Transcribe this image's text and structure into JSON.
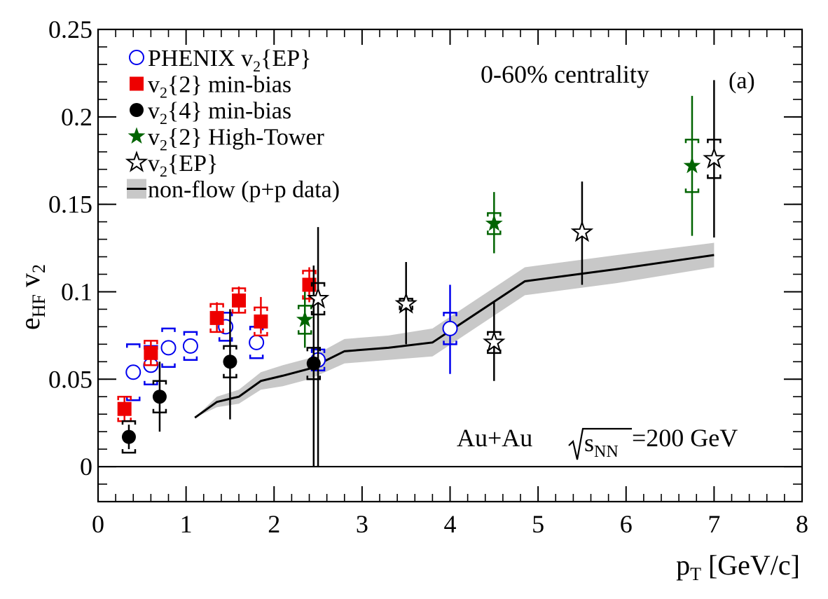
{
  "chart_data": {
    "type": "scatter",
    "xlabel": "p",
    "xlabel_sub": "T",
    "xlabel_unit": "[GeV/c]",
    "ylabel": "e",
    "ylabel_sub": "HF",
    "ylabel_tail": "v",
    "ylabel_tail_sub": "2",
    "xlim": [
      0,
      8
    ],
    "ylim": [
      -0.02,
      0.25
    ],
    "x_ticks": [
      0,
      1,
      2,
      3,
      4,
      5,
      6,
      7,
      8
    ],
    "x_tick_labels": [
      "0",
      "1",
      "2",
      "3",
      "4",
      "5",
      "6",
      "7",
      "8"
    ],
    "y_ticks": [
      0,
      0.05,
      0.1,
      0.15,
      0.2,
      0.25
    ],
    "y_tick_labels": [
      "0",
      "0.05",
      "0.1",
      "0.15",
      "0.2",
      "0.25"
    ],
    "annotations": {
      "centrality": "0-60% centrality",
      "panel": "(a)",
      "system": "Au+Au",
      "sqrt_label": "s",
      "sqrt_sub": "NN",
      "energy": "=200 GeV"
    },
    "legend": {
      "placement": "top-left",
      "entries": [
        {
          "key": "phenix",
          "symbol": "open-circle",
          "color": "#0000ee",
          "parts": [
            "PHENIX v",
            "2",
            "{EP}"
          ]
        },
        {
          "key": "v2_2_mb",
          "symbol": "filled-square",
          "color": "#ee0000",
          "parts": [
            "v",
            "2",
            "{2} min-bias"
          ]
        },
        {
          "key": "v2_4_mb",
          "symbol": "filled-circle",
          "color": "#000000",
          "parts": [
            "v",
            "2",
            "{4} min-bias"
          ]
        },
        {
          "key": "v2_2_ht",
          "symbol": "filled-star",
          "color": "#006400",
          "parts": [
            "v",
            "2",
            "{2} High-Tower"
          ]
        },
        {
          "key": "v2_ep",
          "symbol": "open-star",
          "color": "#000000",
          "parts": [
            "v",
            "2",
            "{EP}"
          ]
        },
        {
          "key": "nonflow",
          "symbol": "line-band",
          "color": "#000000",
          "band_color": "#c8c8c8",
          "parts": [
            "non-flow (p+p data)",
            "",
            ""
          ]
        }
      ]
    },
    "series": [
      {
        "key": "phenix",
        "symbol": "open-circle",
        "color": "#0000ee",
        "points": [
          {
            "x": 0.4,
            "y": 0.054,
            "sys": 0.016
          },
          {
            "x": 0.6,
            "y": 0.058,
            "sys": 0.011
          },
          {
            "x": 0.8,
            "y": 0.068,
            "sys": 0.011
          },
          {
            "x": 1.05,
            "y": 0.069,
            "sys": 0.008
          },
          {
            "x": 1.45,
            "y": 0.08,
            "sys": 0.008
          },
          {
            "x": 1.8,
            "y": 0.071,
            "sys": 0.009
          },
          {
            "x": 2.5,
            "y": 0.061,
            "sys": 0.006
          },
          {
            "x": 4.0,
            "y": 0.079,
            "stat": [
              0.053,
              0.104
            ],
            "sys": 0.009
          }
        ]
      },
      {
        "key": "v2_2_mb",
        "symbol": "filled-square",
        "color": "#ee0000",
        "points": [
          {
            "x": 0.3,
            "y": 0.033,
            "stat": [
              0.026,
              0.04
            ],
            "sys": 0.007
          },
          {
            "x": 0.6,
            "y": 0.065,
            "stat": [
              0.058,
              0.072
            ],
            "sys": 0.007
          },
          {
            "x": 1.35,
            "y": 0.085,
            "stat": [
              0.077,
              0.094
            ],
            "sys": 0.008
          },
          {
            "x": 1.6,
            "y": 0.095,
            "stat": [
              0.088,
              0.103
            ],
            "sys": 0.007
          },
          {
            "x": 1.85,
            "y": 0.083,
            "stat": [
              0.076,
              0.097
            ],
            "sys": 0.008
          },
          {
            "x": 2.4,
            "y": 0.104,
            "stat": [
              0.094,
              0.114
            ],
            "sys": 0.008
          }
        ]
      },
      {
        "key": "v2_4_mb",
        "symbol": "filled-circle",
        "color": "#000000",
        "points": [
          {
            "x": 0.35,
            "y": 0.017,
            "stat": [
              0.01,
              0.024
            ],
            "sys": 0.009
          },
          {
            "x": 0.7,
            "y": 0.04,
            "stat": [
              0.02,
              0.06
            ],
            "sys": 0.009
          },
          {
            "x": 1.5,
            "y": 0.06,
            "stat": [
              0.027,
              0.09
            ],
            "sys": 0.009
          },
          {
            "x": 2.45,
            "y": 0.059,
            "stat": [
              0.0,
              0.115
            ],
            "sys": 0.009
          }
        ]
      },
      {
        "key": "v2_2_ht",
        "symbol": "filled-star",
        "color": "#006400",
        "points": [
          {
            "x": 2.35,
            "y": 0.084,
            "stat": [
              0.068,
              0.1
            ],
            "sys": 0.008
          },
          {
            "x": 4.5,
            "y": 0.139,
            "stat": [
              0.122,
              0.157
            ],
            "sys": 0.006
          },
          {
            "x": 6.75,
            "y": 0.172,
            "stat": [
              0.132,
              0.212
            ],
            "sys": 0.015
          }
        ]
      },
      {
        "key": "v2_ep",
        "symbol": "open-star",
        "color": "#000000",
        "points": [
          {
            "x": 2.5,
            "y": 0.096,
            "stat": [
              0.0,
              0.137
            ],
            "sys": 0.009
          },
          {
            "x": 3.5,
            "y": 0.093,
            "stat": [
              0.07,
              0.117
            ],
            "sys": 0.003
          },
          {
            "x": 4.5,
            "y": 0.071,
            "stat": [
              0.049,
              0.094
            ],
            "sys": 0.006
          },
          {
            "x": 5.5,
            "y": 0.134,
            "stat": [
              0.104,
              0.163
            ],
            "sys": 0.0
          },
          {
            "x": 7.0,
            "y": 0.176,
            "stat": [
              0.131,
              0.221
            ],
            "sys": 0.011
          }
        ]
      }
    ],
    "nonflow": {
      "x": [
        1.1,
        1.35,
        1.6,
        1.85,
        2.1,
        2.4,
        2.8,
        3.3,
        3.8,
        4.85,
        5.9,
        7.0
      ],
      "y": [
        0.028,
        0.037,
        0.04,
        0.049,
        0.052,
        0.056,
        0.066,
        0.068,
        0.071,
        0.106,
        0.113,
        0.121
      ],
      "band": [
        0.0,
        0.003,
        0.004,
        0.005,
        0.006,
        0.006,
        0.007,
        0.007,
        0.008,
        0.008,
        0.008,
        0.007
      ]
    }
  }
}
